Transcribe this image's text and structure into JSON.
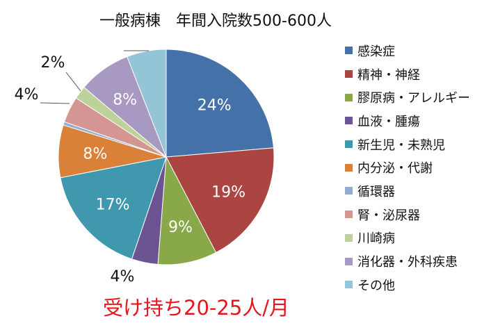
{
  "chart_data": {
    "type": "pie",
    "title": "一般病棟　年間入院数500-600人",
    "subtitle": "受け持ち20-25人/月",
    "slices": [
      {
        "name": "感染症",
        "value": 24,
        "label": "24%",
        "color": "#4472a8"
      },
      {
        "name": "精神・神経",
        "value": 19,
        "label": "19%",
        "color": "#ab4542"
      },
      {
        "name": "膠原病・アレルギー",
        "value": 9,
        "label": "9%",
        "color": "#88a84a"
      },
      {
        "name": "血液・腫瘍",
        "value": 4,
        "label": "4%",
        "color": "#6c5492"
      },
      {
        "name": "新生児・未熟児",
        "value": 17,
        "label": "17%",
        "color": "#3f98ad"
      },
      {
        "name": "内分泌・代謝",
        "value": 8,
        "label": "8%",
        "color": "#da8139"
      },
      {
        "name": "循環器",
        "value": 0.5,
        "label": "",
        "color": "#92acd4"
      },
      {
        "name": "腎・泌尿器",
        "value": 4,
        "label": "4%",
        "color": "#d59593"
      },
      {
        "name": "川崎病",
        "value": 2,
        "label": "2%",
        "color": "#bdd19a"
      },
      {
        "name": "消化器・外科疾患",
        "value": 8,
        "label": "8%",
        "color": "#a899c2"
      },
      {
        "name": "その他",
        "value": 6,
        "label": "",
        "color": "#93c5d6"
      }
    ],
    "legend_position": "right"
  }
}
